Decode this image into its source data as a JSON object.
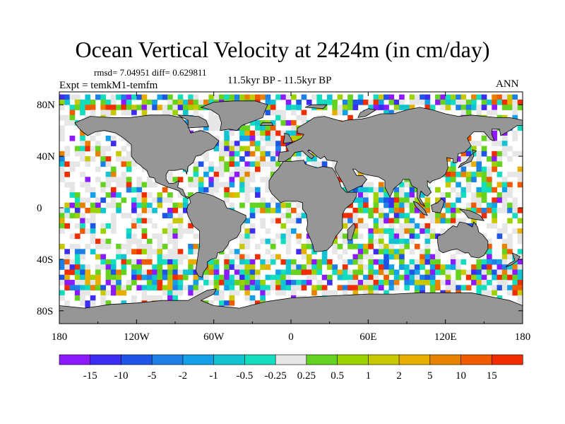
{
  "chart_data": {
    "type": "heatmap",
    "title": "Ocean Vertical Velocity at 2424m (in cm/day)",
    "metadata_line": "rmsd= 7.04951  diff= 0.629811",
    "experiment": "Expt = temkM1-temfm",
    "period": "11.5kyr BP - 11.5kyr BP",
    "season": "ANN",
    "x_ticks": [
      "180",
      "120W",
      "60W",
      "0",
      "60E",
      "120E",
      "180"
    ],
    "y_ticks": [
      "80N",
      "40N",
      "0",
      "40S",
      "80S"
    ],
    "x_range": [
      -180,
      180
    ],
    "y_range": [
      -90,
      90
    ],
    "colorbar": {
      "labels": [
        "-15",
        "-10",
        "-5",
        "-2",
        "-1",
        "-0.5",
        "-0.25",
        "0.25",
        "0.5",
        "1",
        "2",
        "5",
        "10",
        "15"
      ],
      "colors": [
        "#8c1aff",
        "#3c2df0",
        "#1e55e6",
        "#1e80e6",
        "#14a0e6",
        "#12c3d2",
        "#14dcbe",
        "#e6e6e6",
        "#64d21e",
        "#9bd200",
        "#c8c800",
        "#e6af00",
        "#e68200",
        "#f05a00",
        "#f02d00"
      ]
    },
    "land_color": "#969696"
  }
}
